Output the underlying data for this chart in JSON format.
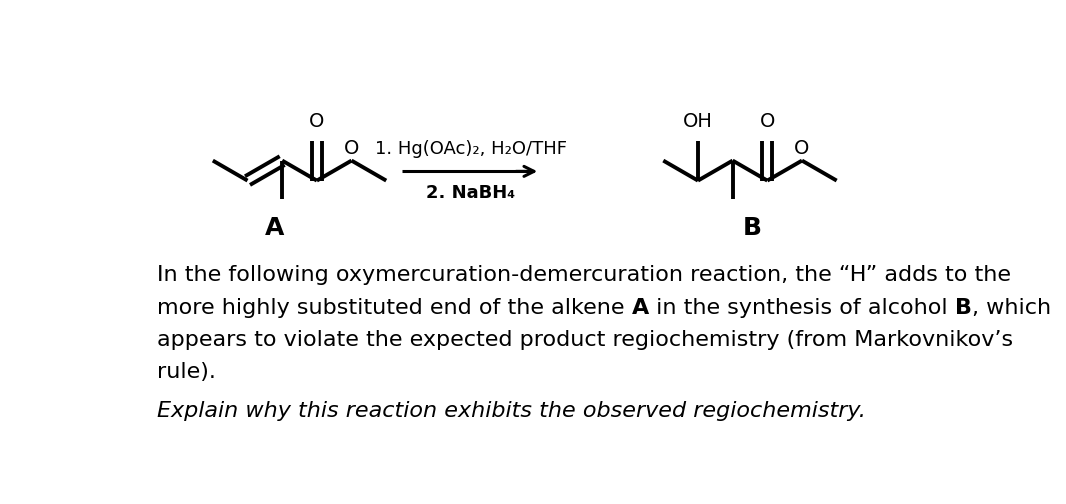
{
  "bg_color": "#ffffff",
  "text_color": "#000000",
  "line_color": "#000000",
  "line_width": 2.8,
  "font_size_label": 18,
  "font_size_body": 16,
  "font_size_italic": 16,
  "font_size_atom": 14,
  "font_size_reaction": 13,
  "label_A": "A",
  "label_B": "B",
  "reaction_line1": "1. Hg(OAc)₂, H₂O/THF",
  "reaction_line2": "2. NaBH₄",
  "body_text_line1": "In the following oxymercuration-demercuration reaction, the “H” adds to the",
  "body_text_line2_pre": "more highly substituted end of the alkene ",
  "body_text_line2_A": "A",
  "body_text_line2_mid": " in the synthesis of alcohol ",
  "body_text_line2_B": "B",
  "body_text_line2_post": ", which",
  "body_text_line3": "appears to violate the expected product regiochemistry (from Markovnikov’s",
  "body_text_line4": "rule).",
  "italic_text": "Explain why this reaction exhibits the observed regiochemistry.",
  "fig_width": 10.66,
  "fig_height": 5.04
}
